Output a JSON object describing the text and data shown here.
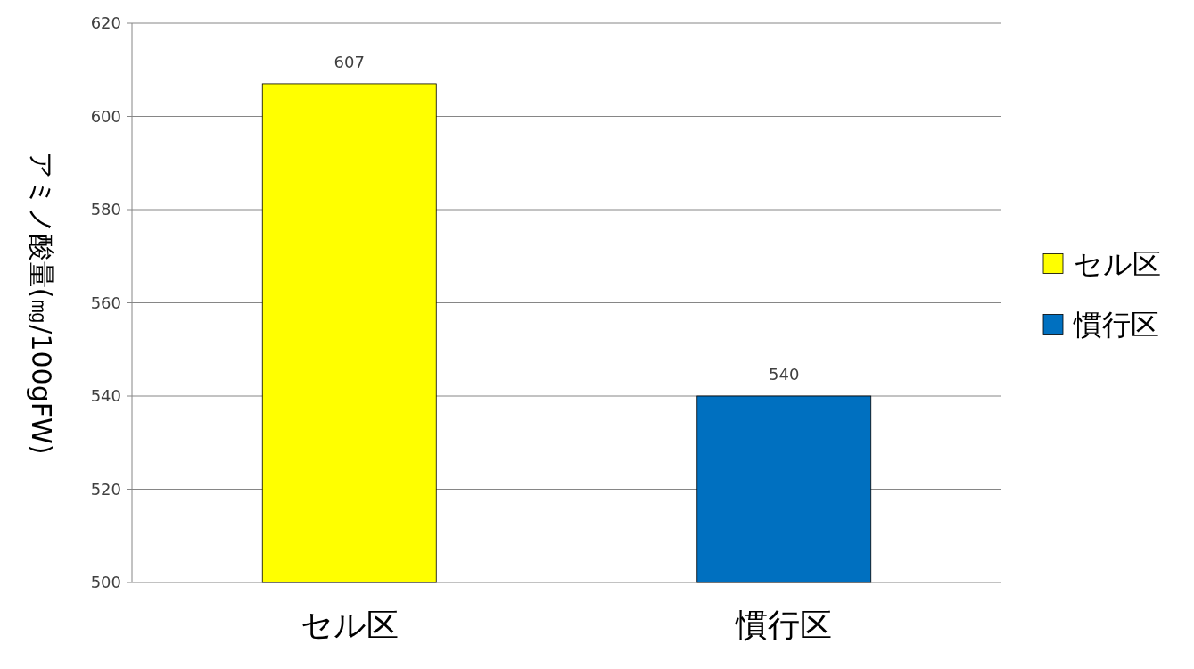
{
  "chart_data": {
    "type": "bar",
    "ylabel": "アミノ酸量(㎎/100gFW)",
    "categories": [
      "セル区",
      "慣行区"
    ],
    "series": [
      {
        "name": "セル区",
        "color": "#ffff00",
        "values": [
          607,
          null
        ]
      },
      {
        "name": "慣行区",
        "color": "#0070c0",
        "values": [
          null,
          540
        ]
      }
    ],
    "ylim": [
      500,
      620
    ],
    "yticks": [
      500,
      520,
      540,
      560,
      580,
      600,
      620
    ],
    "grid": "y",
    "legend": "right",
    "data_labels": true
  }
}
